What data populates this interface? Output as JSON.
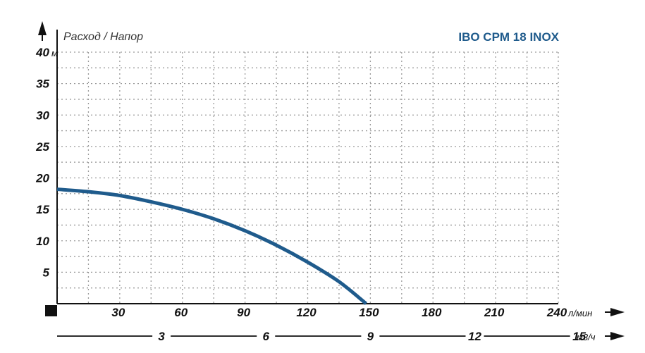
{
  "chart_data": {
    "type": "line",
    "title": "IBO CPM 18 INOX",
    "ylabel": "Расход / Напор",
    "yunit": "м",
    "xunit": "л/мин",
    "x2unit": "м3/ч",
    "ylim": [
      0,
      40
    ],
    "xlim": [
      0,
      240
    ],
    "y_ticks": [
      "40",
      "35",
      "30",
      "25",
      "20",
      "15",
      "10",
      "5"
    ],
    "x_ticks": [
      "30",
      "60",
      "90",
      "120",
      "150",
      "180",
      "210",
      "240"
    ],
    "x2_ticks": [
      "3",
      "6",
      "9",
      "12",
      "15"
    ],
    "grid": true,
    "colors": {
      "curve": "#1f5b8c",
      "title": "#1f5b8c"
    },
    "series": [
      {
        "x": [
          0,
          15,
          30,
          45,
          60,
          75,
          90,
          105,
          120,
          135,
          148
        ],
        "values": [
          18.2,
          17.8,
          17.2,
          16.2,
          15.0,
          13.5,
          11.6,
          9.3,
          6.6,
          3.5,
          0
        ]
      }
    ]
  }
}
